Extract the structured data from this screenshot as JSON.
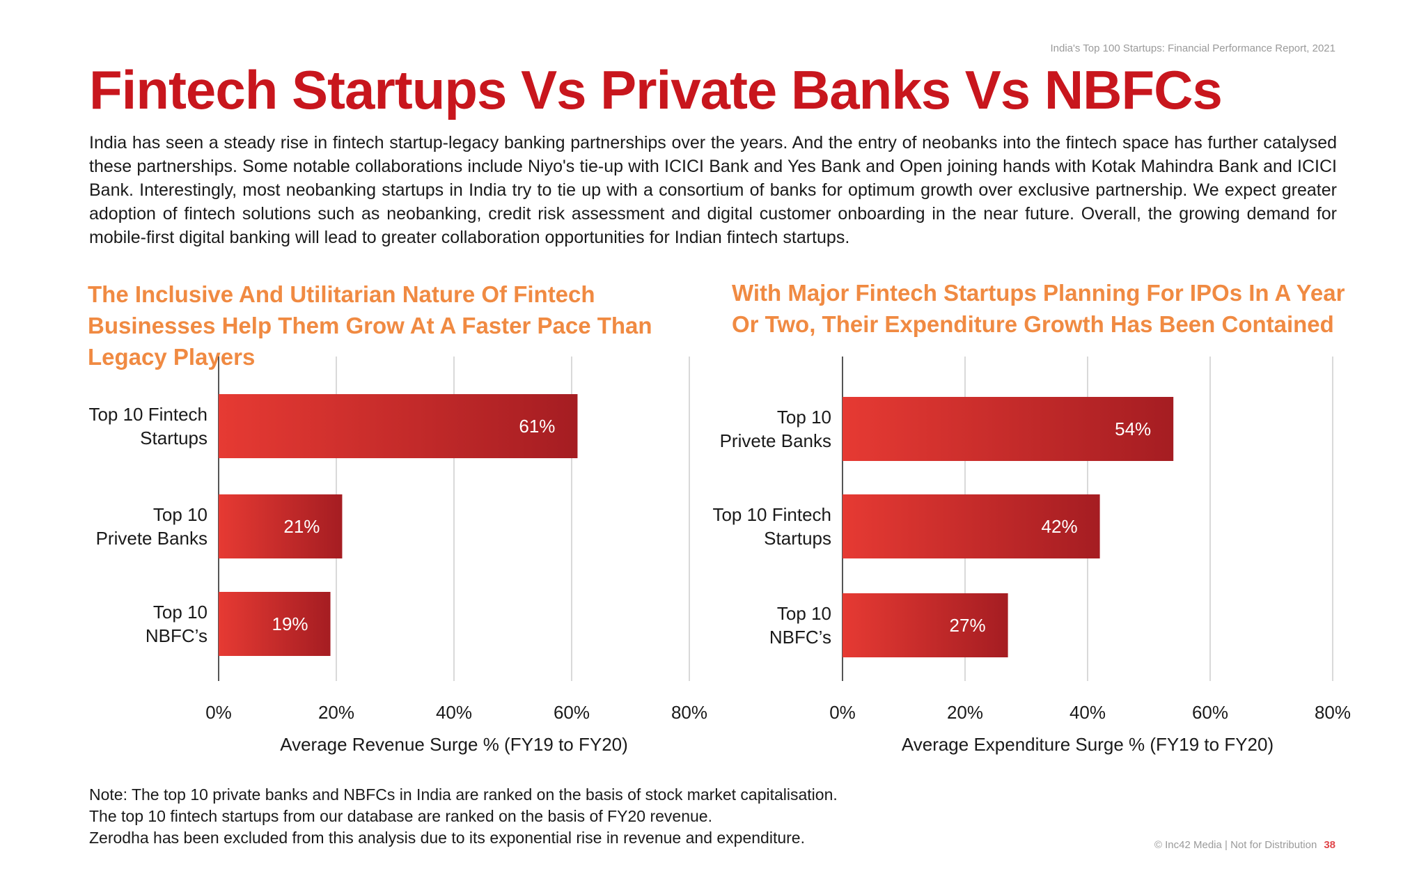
{
  "report_name": "India's Top 100 Startups: Financial Performance Report, 2021",
  "title": "Fintech Startups Vs Private Banks Vs NBFCs",
  "intro": "India has seen a steady rise in fintech startup-legacy banking partnerships over the years. And the entry of neobanks into the fintech space has further catalysed these partnerships. Some notable collaborations include Niyo's tie-up with ICICI Bank and Yes Bank and Open joining hands with Kotak Mahindra Bank and ICICI Bank. Interestingly, most neobanking startups in India try to tie up with a consortium of banks for optimum growth over exclusive partnership. We expect greater adoption of fintech solutions such as neobanking, credit risk assessment and digital customer onboarding in the near future. Overall, the growing demand for mobile-first digital banking will lead to greater collaboration opportunities for Indian fintech startups.",
  "colors": {
    "title": "#c8161d",
    "heading": "#f08a42",
    "bar_light": "#e63a33",
    "bar_dark": "#a51d22",
    "grid": "#d9d9d9"
  },
  "chart_data": [
    {
      "type": "bar",
      "orientation": "horizontal",
      "title": "The Inclusive And Utilitarian Nature Of Fintech Businesses Help Them Grow At A Faster Pace Than Legacy Players",
      "categories": [
        [
          "Top 10 Fintech",
          "Startups"
        ],
        [
          "Top 10",
          "Privete Banks"
        ],
        [
          "Top 10",
          "NBFC’s"
        ]
      ],
      "values": [
        61,
        21,
        19
      ],
      "data_labels": [
        "61%",
        "21%",
        "19%"
      ],
      "xlabel": "Average Revenue Surge % (FY19 to FY20)",
      "xlim": [
        0,
        80
      ],
      "ticks": [
        0,
        20,
        40,
        60,
        80
      ],
      "tick_labels": [
        "0%",
        "20%",
        "40%",
        "60%",
        "80%"
      ],
      "grid": true
    },
    {
      "type": "bar",
      "orientation": "horizontal",
      "title": "With Major Fintech Startups Planning For IPOs In A Year Or Two, Their Expenditure Growth Has Been Contained",
      "categories": [
        [
          "Top 10",
          "Privete Banks"
        ],
        [
          "Top 10 Fintech",
          "Startups"
        ],
        [
          "Top 10",
          "NBFC’s"
        ]
      ],
      "values": [
        54,
        42,
        27
      ],
      "data_labels": [
        "54%",
        "42%",
        "27%"
      ],
      "xlabel": "Average Expenditure Surge % (FY19 to FY20)",
      "xlim": [
        0,
        80
      ],
      "ticks": [
        0,
        20,
        40,
        60,
        80
      ],
      "tick_labels": [
        "0%",
        "20%",
        "40%",
        "60%",
        "80%"
      ],
      "grid": true
    }
  ],
  "notes": [
    "Note: The top 10 private banks and NBFCs in India are ranked on the basis of stock market capitalisation.",
    "The top 10 fintech startups from our database are ranked on the basis of FY20 revenue.",
    "Zerodha has been excluded from this analysis due to its exponential rise in revenue and expenditure."
  ],
  "footer": {
    "text": "© Inc42 Media | Not for Distribution",
    "page": "38"
  }
}
